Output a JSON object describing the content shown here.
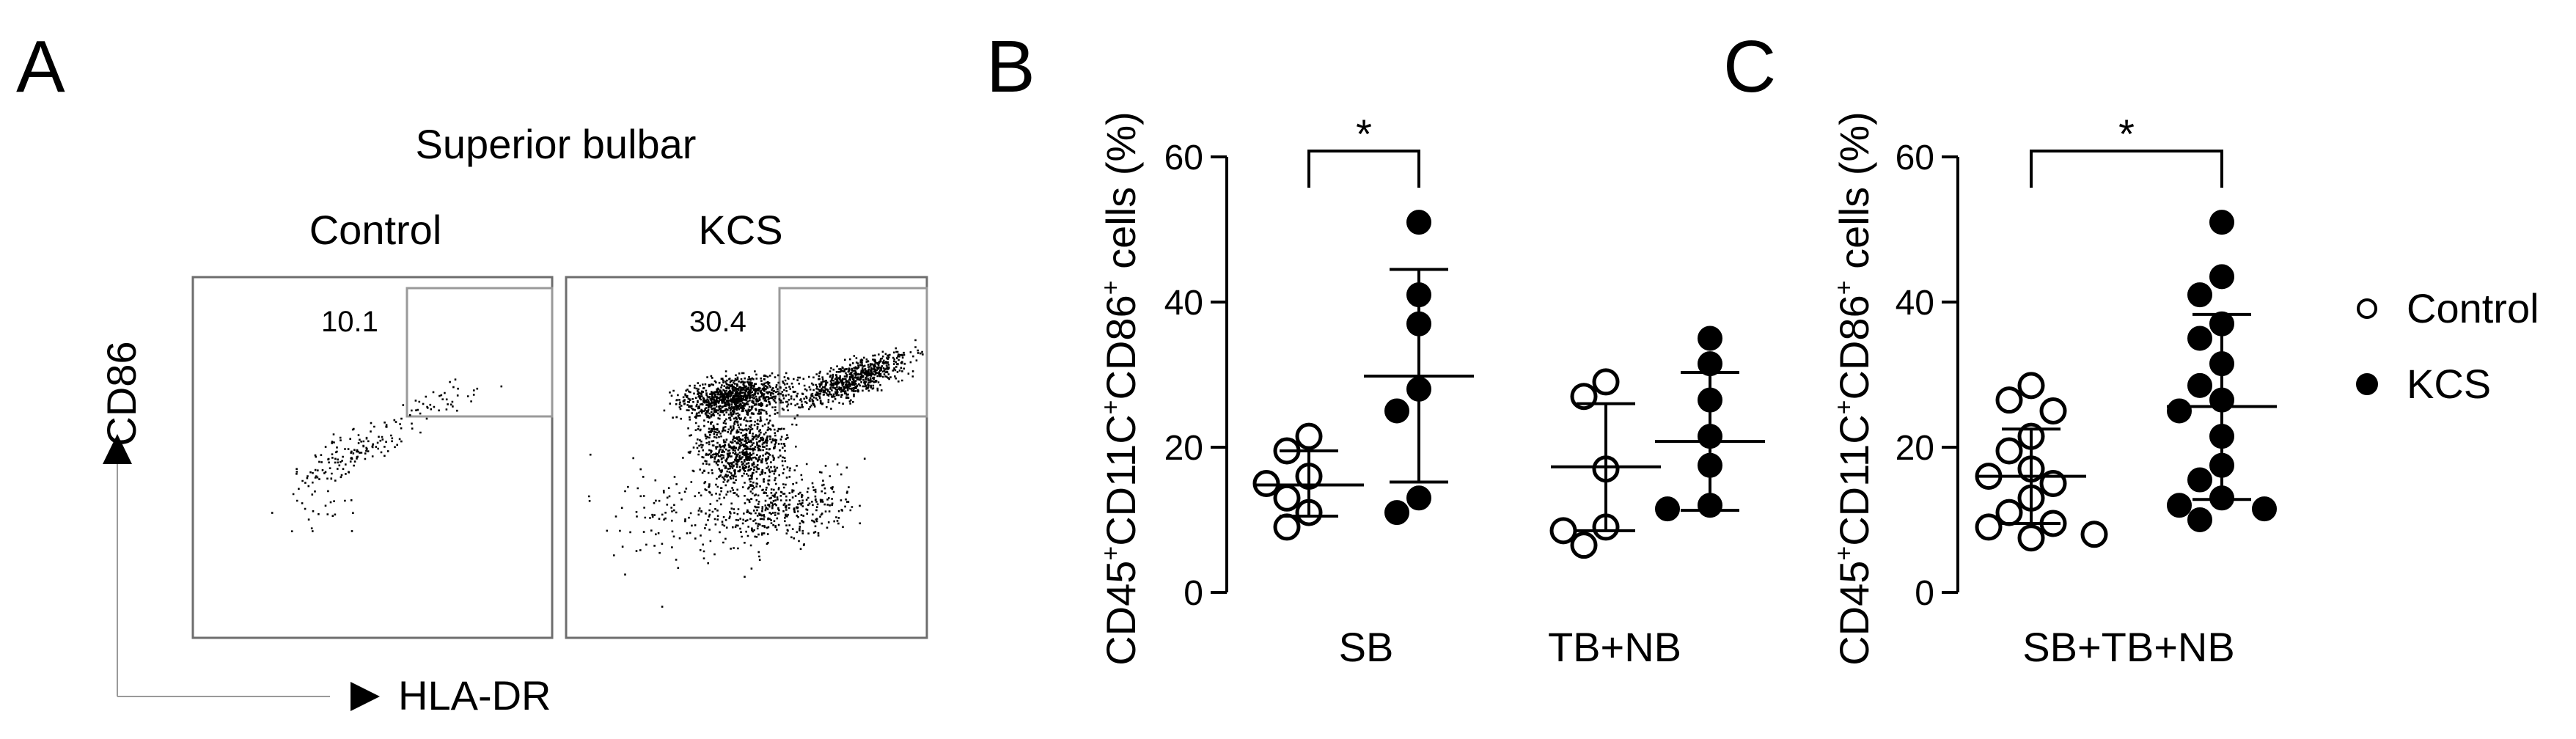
{
  "panel_labels": {
    "a": "A",
    "b": "B",
    "c": "C"
  },
  "flow": {
    "title": "Superior bulbar",
    "columns": [
      "Control",
      "KCS"
    ],
    "percents": [
      "10.1",
      "30.4"
    ],
    "y_marker": "CD86",
    "x_marker": "HLA-DR"
  },
  "ylabel": {
    "part1": "CD45",
    "part2": "CD11C",
    "part3": "CD86",
    "sup": "+",
    "tail": " cells (%)"
  },
  "colors": {
    "ink": "#000000",
    "background": "#ffffff",
    "gate": "#9a9a9a",
    "frame": "#6e6e6e"
  },
  "chart_data": [
    {
      "type": "scatter",
      "title": "",
      "xlabel": "",
      "ylabel": "CD45+CD11C+CD86+ cells (%)",
      "ylim": [
        0,
        60
      ],
      "yticks": [
        "0",
        "20",
        "40",
        "60"
      ],
      "categories": [
        "SB",
        "TB+NB"
      ],
      "series": [
        {
          "name": "Control",
          "marker": "open-circle",
          "groups": [
            {
              "category": "SB",
              "values": [
                21.5,
                19.5,
                16,
                15,
                13,
                11,
                9
              ],
              "mean": 14.8,
              "sd_low": 10.5,
              "sd_high": 19.5
            },
            {
              "category": "TB+NB",
              "values": [
                29,
                27,
                17,
                9,
                8.5,
                6.5
              ],
              "mean": 17.3,
              "sd_low": 8.5,
              "sd_high": 26
            }
          ]
        },
        {
          "name": "KCS",
          "marker": "filled-circle",
          "groups": [
            {
              "category": "SB",
              "values": [
                51,
                41,
                37,
                28,
                25,
                13,
                11
              ],
              "mean": 29.8,
              "sd_low": 15.2,
              "sd_high": 44.5
            },
            {
              "category": "TB+NB",
              "values": [
                35,
                31.5,
                26.5,
                21.5,
                17.5,
                12,
                11.5
              ],
              "mean": 20.8,
              "sd_low": 11.3,
              "sd_high": 30.3
            }
          ]
        }
      ],
      "annotations": [
        {
          "text": "*",
          "between": [
            "Control SB",
            "KCS SB"
          ]
        }
      ],
      "grid": false,
      "legend": "none"
    },
    {
      "type": "scatter",
      "title": "",
      "xlabel": "",
      "ylabel": "CD45+CD11C+CD86+ cells (%)",
      "ylim": [
        0,
        60
      ],
      "yticks": [
        "0",
        "20",
        "40",
        "60"
      ],
      "categories": [
        "SB+TB+NB"
      ],
      "series": [
        {
          "name": "Control",
          "marker": "open-circle",
          "groups": [
            {
              "category": "SB+TB+NB",
              "values": [
                28.5,
                26.5,
                25,
                21.5,
                19.5,
                17,
                16,
                15,
                13,
                11,
                9.5,
                9,
                8,
                7.5
              ],
              "mean": 16,
              "sd_low": 9.5,
              "sd_high": 22.5
            }
          ]
        },
        {
          "name": "KCS",
          "marker": "filled-circle",
          "groups": [
            {
              "category": "SB+TB+NB",
              "values": [
                51,
                43.5,
                41,
                37,
                35,
                31.5,
                28.5,
                26.5,
                25,
                21.5,
                17.5,
                15.5,
                13,
                12,
                11.5,
                10
              ],
              "mean": 25.6,
              "sd_low": 12.8,
              "sd_high": 38.3
            }
          ]
        }
      ],
      "annotations": [
        {
          "text": "*",
          "between": [
            "Control",
            "KCS"
          ]
        }
      ],
      "grid": false,
      "legend": "right"
    }
  ]
}
